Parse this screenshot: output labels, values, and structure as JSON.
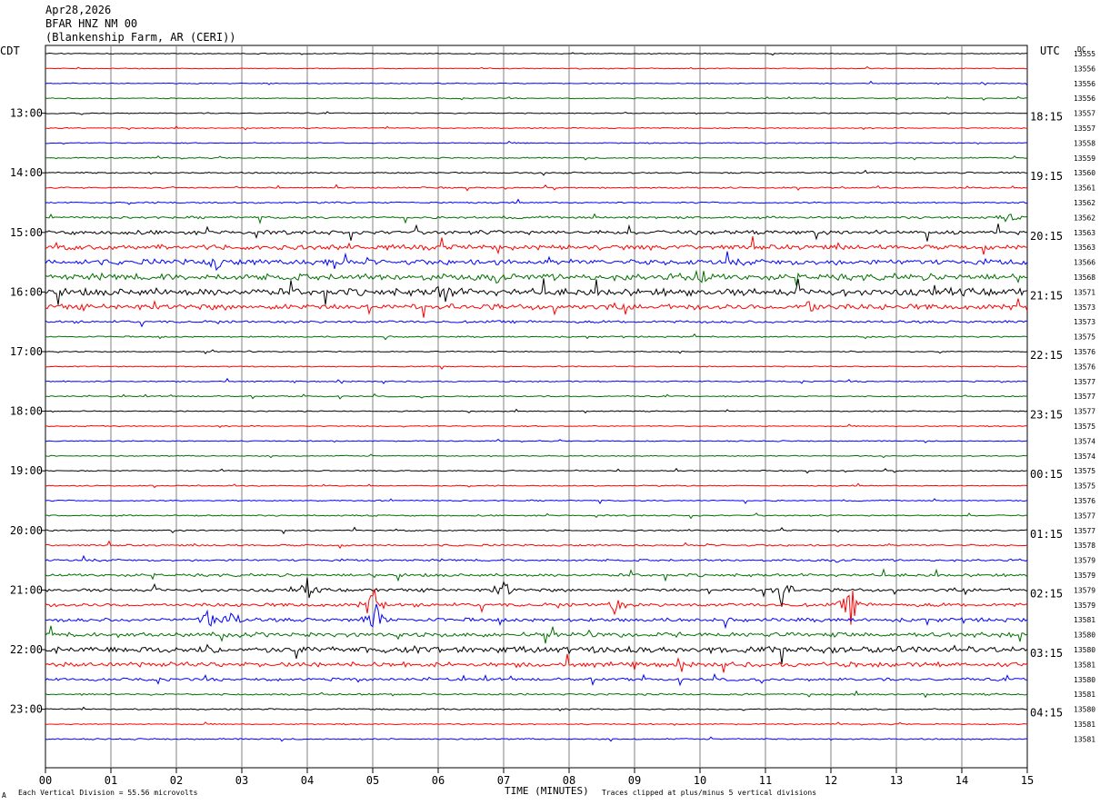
{
  "header": {
    "line1": "Apr28,2026",
    "line2": "BFAR HNZ NM 00",
    "line3": "(Blankenship Farm, AR (CERI))"
  },
  "left_tz": "CDT",
  "right_tz": "UTC",
  "dc_header": "DC",
  "footer": {
    "scale_note": "Each Vertical Division =   55.56 microvolts",
    "clip_note": "Traces clipped at plus/minus 5 vertical divisions",
    "corner_mark": "A"
  },
  "chart_data": {
    "type": "line",
    "title": "",
    "xlabel": "TIME (MINUTES)",
    "ylabel": "",
    "xlim": [
      0,
      15
    ],
    "x_ticks": [
      "00",
      "01",
      "02",
      "03",
      "04",
      "05",
      "06",
      "07",
      "08",
      "09",
      "10",
      "11",
      "12",
      "13",
      "14",
      "15"
    ],
    "trace_colors": [
      "#000000",
      "#ff0000",
      "#0000ff",
      "#007000"
    ],
    "left_time_labels": [
      "13:00",
      "14:00",
      "15:00",
      "16:00",
      "17:00",
      "18:00",
      "19:00",
      "20:00",
      "21:00",
      "22:00",
      "23:00"
    ],
    "right_time_labels": [
      "18:15",
      "19:15",
      "20:15",
      "21:15",
      "22:15",
      "23:15",
      "00:15",
      "01:15",
      "02:15",
      "03:15",
      "04:15"
    ],
    "dc_offsets": [
      "13555",
      "13556",
      "13556",
      "13556",
      "13557",
      "13557",
      "13558",
      "13559",
      "13560",
      "13561",
      "13562",
      "13562",
      "13563",
      "13563",
      "13566",
      "13568",
      "13571",
      "13573",
      "13573",
      "13575",
      "13576",
      "13576",
      "13577",
      "13577",
      "13577",
      "13575",
      "13574",
      "13574",
      "13575",
      "13575",
      "13576",
      "13577",
      "13577",
      "13578",
      "13579",
      "13579",
      "13579",
      "13579",
      "13581",
      "13580",
      "13580",
      "13581",
      "13580",
      "13581",
      "13580",
      "13581",
      "13581"
    ],
    "trace_activity": [
      0.6,
      0.6,
      0.6,
      0.6,
      0.7,
      0.7,
      0.7,
      0.8,
      1.0,
      0.9,
      1.0,
      1.5,
      2.6,
      3.2,
      3.6,
      4.2,
      4.6,
      3.6,
      1.6,
      0.9,
      0.7,
      0.7,
      0.8,
      0.8,
      0.7,
      0.7,
      0.7,
      0.7,
      0.7,
      0.7,
      0.8,
      0.9,
      0.9,
      1.2,
      1.4,
      1.9,
      2.0,
      2.3,
      2.4,
      3.0,
      4.2,
      3.1,
      1.8,
      1.2,
      0.9,
      0.8,
      0.9
    ],
    "events": [
      {
        "trace": 36,
        "minute": 4.0,
        "amp": 3
      },
      {
        "trace": 37,
        "minute": 5.0,
        "amp": 6
      },
      {
        "trace": 38,
        "minute": 5.05,
        "amp": 5
      },
      {
        "trace": 37,
        "minute": 12.3,
        "amp": 6
      },
      {
        "trace": 36,
        "minute": 11.25,
        "amp": 5
      },
      {
        "trace": 36,
        "minute": 7.0,
        "amp": 3
      },
      {
        "trace": 38,
        "minute": 2.5,
        "amp": 4
      },
      {
        "trace": 38,
        "minute": 2.85,
        "amp": 3
      },
      {
        "trace": 16,
        "minute": 6.1,
        "amp": 3
      },
      {
        "trace": 15,
        "minute": 10.0,
        "amp": 3
      },
      {
        "trace": 14,
        "minute": 2.6,
        "amp": 2
      },
      {
        "trace": 14,
        "minute": 4.4,
        "amp": 2
      },
      {
        "trace": 17,
        "minute": 11.7,
        "amp": 3
      },
      {
        "trace": 37,
        "minute": 8.7,
        "amp": 2.5
      },
      {
        "trace": 11,
        "minute": 14.7,
        "amp": 1.5
      }
    ]
  }
}
